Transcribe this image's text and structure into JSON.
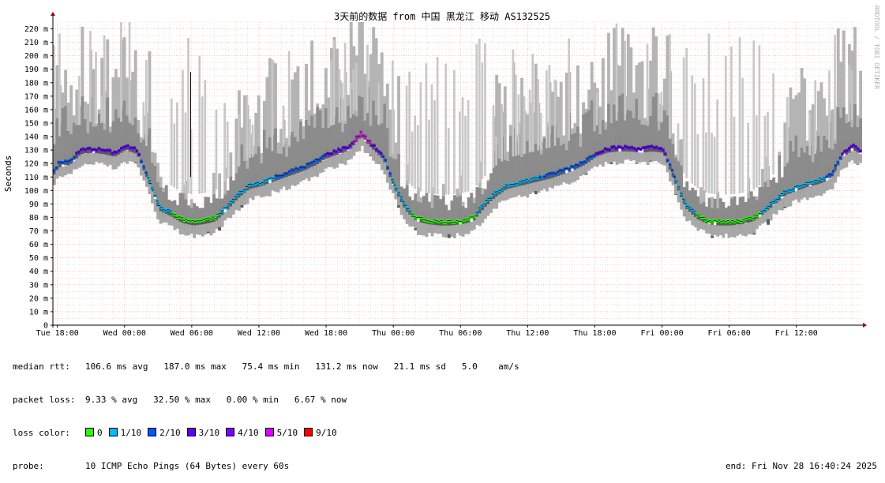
{
  "chart_data": {
    "type": "area",
    "title": "3天前的数据 from 中国 黑龙江 移动 AS132525",
    "ylabel": "Seconds",
    "ylim": [
      0,
      225
    ],
    "yticks": [
      "0",
      "10 m",
      "20 m",
      "30 m",
      "40 m",
      "50 m",
      "60 m",
      "70 m",
      "80 m",
      "90 m",
      "100 m",
      "110 m",
      "120 m",
      "130 m",
      "140 m",
      "150 m",
      "160 m",
      "170 m",
      "180 m",
      "190 m",
      "200 m",
      "210 m",
      "220 m"
    ],
    "xticks": [
      "Tue 18:00",
      "Wed 00:00",
      "Wed 06:00",
      "Wed 12:00",
      "Wed 18:00",
      "Thu 00:00",
      "Thu 06:00",
      "Thu 12:00",
      "Thu 18:00",
      "Fri 00:00",
      "Fri 06:00",
      "Fri 12:00"
    ],
    "xrange_hours": [
      -0.4,
      71.8
    ],
    "grid": true,
    "watermark": "RRDTOOL / TOBI OETIKER",
    "series": [
      {
        "name": "median rtt",
        "x": [
          -0.4,
          0,
          1,
          2,
          3,
          4,
          5,
          6,
          7,
          8,
          9,
          10,
          11,
          12,
          13,
          14,
          15,
          16,
          17,
          18,
          19,
          20,
          21,
          22,
          23,
          24,
          25,
          26,
          27,
          28,
          29,
          30,
          31,
          32,
          33,
          34,
          35,
          36,
          37,
          38,
          39,
          40,
          41,
          42,
          43,
          44,
          45,
          46,
          47,
          48,
          49,
          50,
          51,
          52,
          53,
          54,
          55,
          56,
          57,
          58,
          59,
          60,
          61,
          62,
          63,
          64,
          65,
          66,
          67,
          68,
          69,
          70,
          71,
          71.8
        ],
        "values": [
          115,
          120,
          122,
          130,
          131,
          130,
          128,
          133,
          130,
          110,
          88,
          84,
          79,
          77,
          78,
          80,
          88,
          97,
          104,
          106,
          109,
          112,
          115,
          118,
          122,
          127,
          130,
          133,
          143,
          134,
          126,
          104,
          88,
          80,
          78,
          77,
          77,
          78,
          80,
          90,
          98,
          104,
          106,
          108,
          110,
          112,
          115,
          118,
          122,
          128,
          131,
          132,
          132,
          131,
          132,
          131,
          110,
          90,
          82,
          78,
          77,
          77,
          78,
          80,
          86,
          93,
          100,
          103,
          106,
          108,
          112,
          128,
          133,
          129
        ]
      }
    ],
    "legend": {
      "median_rtt": {
        "label": "median rtt:",
        "text": "106.6 ms avg   187.0 ms max   75.4 ms min   131.2 ms now   21.1 ms sd   5.0    am/s"
      },
      "packet_loss": {
        "label": "packet loss:",
        "text": "9.33 % avg   32.50 % max   0.00 % min   6.67 % now"
      },
      "loss_color": {
        "label": "loss color:",
        "items": [
          {
            "name": "0",
            "color": "#26ff00"
          },
          {
            "name": "1/10",
            "color": "#00b8ff"
          },
          {
            "name": "2/10",
            "color": "#0059ff"
          },
          {
            "name": "3/10",
            "color": "#5e00ff"
          },
          {
            "name": "4/10",
            "color": "#7e00ff"
          },
          {
            "name": "5/10",
            "color": "#dd00ff"
          },
          {
            "name": "9/10",
            "color": "#ff0000"
          }
        ]
      },
      "probe": {
        "label": "probe:",
        "text": "10 ICMP Echo Pings (64 Bytes) every 60s"
      },
      "end": "end: Fri Nov 28 16:40:24 2025"
    }
  }
}
